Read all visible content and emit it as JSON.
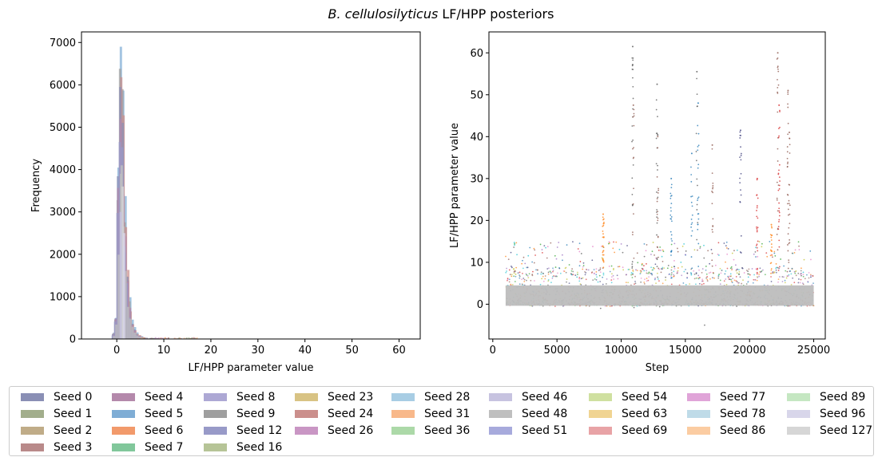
{
  "figure": {
    "title_italic": "B. cellulosilyticus",
    "title_rest": " LF/HPP posteriors"
  },
  "chart_data": [
    {
      "type": "histogram",
      "xlabel": "LF/HPP parameter value",
      "ylabel": "Frequency",
      "xlim": [
        -7.5,
        64.5
      ],
      "ylim": [
        0,
        7250
      ],
      "xticks": [
        0,
        10,
        20,
        30,
        40,
        50,
        60
      ],
      "yticks": [
        0,
        1000,
        2000,
        3000,
        4000,
        5000,
        6000,
        7000
      ],
      "bin_width": 0.5,
      "bins_x": [
        -1.0,
        -0.5,
        0.0,
        0.5,
        1.0,
        1.5,
        2.0,
        2.5,
        3.0,
        3.5,
        4.0,
        4.5,
        5.0,
        5.5,
        6.0,
        7.0,
        8.0,
        9.0,
        10.0,
        11.0,
        12.0,
        14.0,
        16.0
      ],
      "series": [
        {
          "name": "Seed 5",
          "peak": 6900
        },
        {
          "name": "Seed 9",
          "peak": 6380
        },
        {
          "name": "Seed 24",
          "peak": 6180
        },
        {
          "name": "Seed 0",
          "peak": 5950
        },
        {
          "name": "Seed 4",
          "peak": 5200
        },
        {
          "name": "Seed 12",
          "peak": 4650
        },
        {
          "name": "Seed 48",
          "peak": 3900
        }
      ]
    },
    {
      "type": "scatter",
      "xlabel": "Step",
      "ylabel": "LF/HPP parameter value",
      "xlim": [
        -300,
        25900
      ],
      "ylim": [
        -8.3,
        65
      ],
      "xticks": [
        0,
        5000,
        10000,
        15000,
        20000,
        25000
      ],
      "yticks": [
        0,
        10,
        20,
        30,
        40,
        50,
        60
      ],
      "step_range": [
        1000,
        25000
      ],
      "spikes": [
        {
          "x": 10900,
          "ymax": 61.5,
          "color": "#555555"
        },
        {
          "x": 10950,
          "ymax": 47.5,
          "color": "#8c564b"
        },
        {
          "x": 12800,
          "ymax": 52.5,
          "color": "#555555"
        },
        {
          "x": 12850,
          "ymax": 40.0,
          "color": "#8c564b"
        },
        {
          "x": 15500,
          "ymax": 36.0,
          "color": "#1f77b4"
        },
        {
          "x": 15900,
          "ymax": 55.5,
          "color": "#555555"
        },
        {
          "x": 16000,
          "ymax": 48.0,
          "color": "#1f77b4"
        },
        {
          "x": 17100,
          "ymax": 38.0,
          "color": "#8c564b"
        },
        {
          "x": 19300,
          "ymax": 41.5,
          "color": "#393b79"
        },
        {
          "x": 20600,
          "ymax": 30.0,
          "color": "#d62728"
        },
        {
          "x": 22200,
          "ymax": 60.0,
          "color": "#8c564b"
        },
        {
          "x": 22300,
          "ymax": 47.5,
          "color": "#d62728"
        },
        {
          "x": 23000,
          "ymax": 51.0,
          "color": "#8c564b"
        },
        {
          "x": 23100,
          "ymax": 41.0,
          "color": "#8c564b"
        },
        {
          "x": 13900,
          "ymax": 30.0,
          "color": "#1f77b4"
        },
        {
          "x": 8600,
          "ymax": 21.5,
          "color": "#ff7f0e"
        },
        {
          "x": 21700,
          "ymax": 19.0,
          "color": "#ff7f0e"
        }
      ]
    }
  ],
  "legend": {
    "items": [
      {
        "label": "Seed 0",
        "color": "#8a8fb5"
      },
      {
        "label": "Seed 1",
        "color": "#a2ae8c"
      },
      {
        "label": "Seed 2",
        "color": "#c0ac88"
      },
      {
        "label": "Seed 3",
        "color": "#b98a8a"
      },
      {
        "label": "Seed 4",
        "color": "#b489ab"
      },
      {
        "label": "Seed 5",
        "color": "#7fadd5"
      },
      {
        "label": "Seed 6",
        "color": "#f29a6b"
      },
      {
        "label": "Seed 7",
        "color": "#81c79b"
      },
      {
        "label": "Seed 8",
        "color": "#ada8d4"
      },
      {
        "label": "Seed 9",
        "color": "#9f9f9f"
      },
      {
        "label": "Seed 12",
        "color": "#989ac8"
      },
      {
        "label": "Seed 16",
        "color": "#b6c497"
      },
      {
        "label": "Seed 23",
        "color": "#d8c384"
      },
      {
        "label": "Seed 24",
        "color": "#cb8f8c"
      },
      {
        "label": "Seed 26",
        "color": "#c996c4"
      },
      {
        "label": "Seed 28",
        "color": "#a8cde4"
      },
      {
        "label": "Seed 31",
        "color": "#f8b88a"
      },
      {
        "label": "Seed 36",
        "color": "#acd9a8"
      },
      {
        "label": "Seed 46",
        "color": "#c7c3e0"
      },
      {
        "label": "Seed 48",
        "color": "#bfbfbf"
      },
      {
        "label": "Seed 51",
        "color": "#a7aadc"
      },
      {
        "label": "Seed 54",
        "color": "#cfe0a0"
      },
      {
        "label": "Seed 63",
        "color": "#f0d492"
      },
      {
        "label": "Seed 69",
        "color": "#e8a3a6"
      },
      {
        "label": "Seed 77",
        "color": "#e0a4d8"
      },
      {
        "label": "Seed 78",
        "color": "#bfdbe8"
      },
      {
        "label": "Seed 86",
        "color": "#fbcca2"
      },
      {
        "label": "Seed 89",
        "color": "#c5e7c2"
      },
      {
        "label": "Seed 96",
        "color": "#d8d6ea"
      },
      {
        "label": "Seed 127",
        "color": "#d6d6d6"
      }
    ]
  }
}
